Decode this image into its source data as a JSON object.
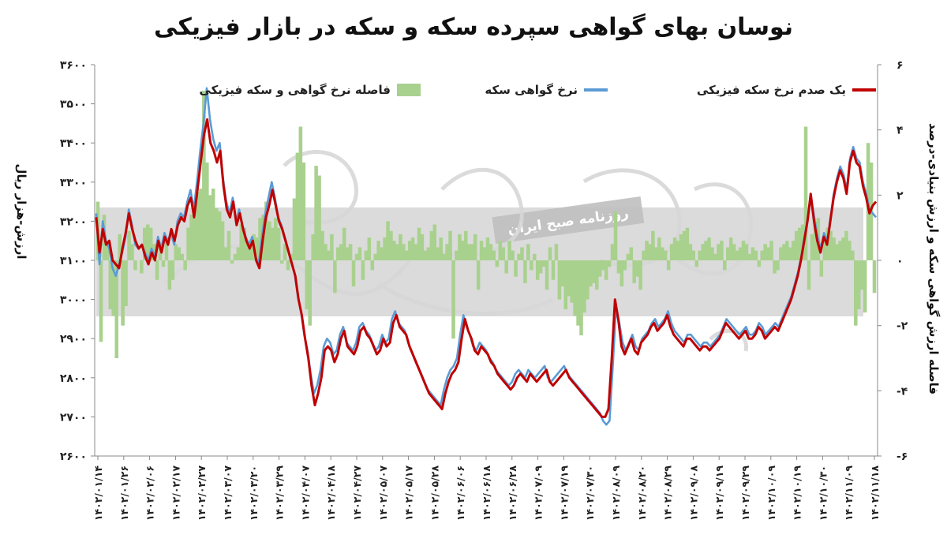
{
  "chart_data": {
    "type": "line",
    "title": "نوسان بهای گواهی سپرده سکه و سکه در بازار فیزیکی",
    "watermark": "روزنامه صبح ایران",
    "y_left": {
      "label": "ارزش-هزار ریال",
      "ylim": [
        2600,
        3600
      ],
      "ticks": [
        2600,
        2700,
        2800,
        2900,
        3000,
        3100,
        3200,
        3300,
        3400,
        3500,
        3600
      ],
      "tick_labels": [
        "۲۶۰۰",
        "۲۷۰۰",
        "۲۸۰۰",
        "۲۹۰۰",
        "۳۰۰۰",
        "۳۱۰۰",
        "۳۲۰۰",
        "۳۳۰۰",
        "۳۴۰۰",
        "۳۵۰۰",
        "۳۶۰۰"
      ]
    },
    "y_right": {
      "label": "فاصله ارزش گواهی سکه و ارزش بنیادی-درصد",
      "ylim": [
        -6,
        6
      ],
      "ticks": [
        -6,
        -4,
        -2,
        0,
        2,
        4,
        6
      ],
      "tick_labels": [
        "-۶",
        "-۴",
        "-۲",
        "۰",
        "۲",
        "۴",
        "۶"
      ]
    },
    "x_tick_labels": [
      "۱۴۰۲/۰۱/۱۴",
      "۱۴۰۲/۰۱/۲۶",
      "۱۴۰۲/۰۲/۰۶",
      "۱۴۰۲/۰۲/۱۷",
      "۱۴۰۲/۰۲/۲۷",
      "۱۴۰۲/۰۳/۰۷",
      "۱۴۰۲/۰۳/۲۰",
      "۱۴۰۲/۰۳/۲۹",
      "۱۴۰۲/۰۴/۰۷",
      "۱۴۰۲/۰۴/۱۸",
      "۱۴۰۲/۰۴/۲۷",
      "۱۴۰۲/۰۵/۰۷",
      "۱۴۰۲/۰۵/۱۷",
      "۱۴۰۲/۰۵/۲۸",
      "۱۴۰۲/۰۶/۰۶",
      "۱۴۰۲/۰۶/۱۸",
      "۱۴۰۲/۰۶/۲۸",
      "۱۴۰۲/۰۷/۰۹",
      "۱۴۰۲/۰۷/۱۹",
      "۱۴۰۲/۰۷/۳۰",
      "۱۴۰۲/۰۸/۰۹",
      "۱۴۰۲/۰۸/۲۰",
      "۱۴۰۲/۰۸/۲۹",
      "۱۴۰۲/۰۹/۰۸",
      "۱۴۰۲/۰۹/۱۹",
      "۱۴۰۲/۰۹/۲۹",
      "۱۴۰۲/۱۰/۰۹",
      "۱۴۰۲/۱۰/۱۹",
      "۱۴۰۲/۱۰/۳۰",
      "۱۴۰۲/۱۱/۰۹",
      "۱۴۰۲/۱۱/۱۸"
    ],
    "legend_position": "top",
    "series": [
      {
        "name": "یک صدم نرخ سکه فیزیکی",
        "axis": "left",
        "color": "#c00000",
        "type": "line",
        "values": [
          3210,
          3120,
          3180,
          3140,
          3150,
          3100,
          3090,
          3080,
          3130,
          3170,
          3220,
          3180,
          3150,
          3130,
          3140,
          3110,
          3090,
          3120,
          3100,
          3150,
          3120,
          3160,
          3140,
          3180,
          3150,
          3190,
          3210,
          3200,
          3240,
          3260,
          3210,
          3280,
          3350,
          3420,
          3460,
          3400,
          3380,
          3350,
          3380,
          3290,
          3230,
          3210,
          3250,
          3190,
          3220,
          3180,
          3150,
          3130,
          3150,
          3100,
          3080,
          3150,
          3210,
          3240,
          3280,
          3240,
          3200,
          3180,
          3150,
          3120,
          3090,
          3060,
          3000,
          2960,
          2900,
          2850,
          2780,
          2730,
          2760,
          2800,
          2870,
          2880,
          2870,
          2840,
          2860,
          2900,
          2920,
          2880,
          2870,
          2860,
          2880,
          2920,
          2930,
          2910,
          2900,
          2880,
          2860,
          2870,
          2900,
          2880,
          2890,
          2940,
          2960,
          2930,
          2920,
          2910,
          2880,
          2860,
          2840,
          2820,
          2800,
          2780,
          2760,
          2750,
          2740,
          2730,
          2720,
          2760,
          2790,
          2810,
          2820,
          2840,
          2900,
          2950,
          2920,
          2900,
          2870,
          2860,
          2880,
          2870,
          2860,
          2840,
          2830,
          2810,
          2800,
          2790,
          2780,
          2770,
          2780,
          2800,
          2810,
          2800,
          2790,
          2810,
          2800,
          2790,
          2800,
          2810,
          2820,
          2790,
          2780,
          2790,
          2800,
          2810,
          2820,
          2800,
          2790,
          2780,
          2770,
          2760,
          2750,
          2740,
          2730,
          2720,
          2710,
          2700,
          2700,
          2720,
          2850,
          3000,
          2950,
          2880,
          2860,
          2880,
          2900,
          2870,
          2860,
          2890,
          2900,
          2910,
          2930,
          2940,
          2920,
          2930,
          2940,
          2960,
          2930,
          2910,
          2900,
          2890,
          2880,
          2900,
          2900,
          2890,
          2880,
          2870,
          2880,
          2880,
          2870,
          2880,
          2890,
          2900,
          2920,
          2940,
          2930,
          2920,
          2910,
          2900,
          2910,
          2920,
          2900,
          2900,
          2910,
          2930,
          2920,
          2900,
          2910,
          2920,
          2930,
          2920,
          2940,
          2960,
          2980,
          3000,
          3030,
          3060,
          3100,
          3150,
          3200,
          3270,
          3200,
          3150,
          3120,
          3160,
          3140,
          3200,
          3260,
          3300,
          3330,
          3310,
          3270,
          3350,
          3380,
          3350,
          3340,
          3290,
          3260,
          3220,
          3240,
          3250
        ],
        "note": ""
      },
      {
        "name": "نرخ گواهی سکه",
        "axis": "left",
        "color": "#5b9bd5",
        "type": "line",
        "values": [
          3220,
          3090,
          3200,
          3150,
          3130,
          3080,
          3060,
          3090,
          3120,
          3160,
          3230,
          3190,
          3140,
          3130,
          3140,
          3120,
          3100,
          3130,
          3110,
          3160,
          3130,
          3170,
          3150,
          3170,
          3140,
          3200,
          3220,
          3210,
          3250,
          3280,
          3230,
          3300,
          3380,
          3450,
          3540,
          3460,
          3410,
          3380,
          3400,
          3310,
          3250,
          3220,
          3260,
          3200,
          3230,
          3190,
          3160,
          3140,
          3160,
          3110,
          3090,
          3160,
          3220,
          3260,
          3300,
          3260,
          3210,
          3190,
          3160,
          3130,
          3100,
          3070,
          3010,
          2970,
          2910,
          2870,
          2810,
          2760,
          2780,
          2820,
          2880,
          2900,
          2890,
          2860,
          2870,
          2910,
          2930,
          2890,
          2880,
          2870,
          2890,
          2930,
          2940,
          2920,
          2910,
          2890,
          2870,
          2880,
          2910,
          2890,
          2900,
          2950,
          2970,
          2940,
          2930,
          2920,
          2890,
          2870,
          2850,
          2830,
          2810,
          2790,
          2770,
          2760,
          2750,
          2740,
          2730,
          2770,
          2800,
          2820,
          2830,
          2850,
          2910,
          2960,
          2930,
          2910,
          2880,
          2870,
          2890,
          2880,
          2870,
          2850,
          2840,
          2820,
          2810,
          2800,
          2790,
          2780,
          2790,
          2810,
          2820,
          2810,
          2800,
          2820,
          2810,
          2800,
          2810,
          2820,
          2830,
          2800,
          2790,
          2800,
          2810,
          2820,
          2830,
          2810,
          2800,
          2790,
          2780,
          2770,
          2760,
          2750,
          2740,
          2730,
          2720,
          2710,
          2690,
          2680,
          2690,
          2830,
          2980,
          2940,
          2890,
          2870,
          2890,
          2910,
          2880,
          2870,
          2900,
          2910,
          2920,
          2940,
          2950,
          2930,
          2940,
          2950,
          2970,
          2940,
          2920,
          2910,
          2900,
          2890,
          2910,
          2910,
          2900,
          2890,
          2880,
          2890,
          2890,
          2880,
          2890,
          2900,
          2910,
          2930,
          2950,
          2940,
          2930,
          2920,
          2910,
          2920,
          2930,
          2910,
          2910,
          2920,
          2940,
          2930,
          2910,
          2920,
          2930,
          2940,
          2930,
          2950,
          2970,
          2990,
          3010,
          3040,
          3070,
          3110,
          3160,
          3210,
          3260,
          3210,
          3160,
          3130,
          3170,
          3150,
          3210,
          3270,
          3310,
          3340,
          3320,
          3280,
          3360,
          3390,
          3360,
          3350,
          3300,
          3270,
          3230,
          3220,
          3210
        ]
      }
    ],
    "area_series": {
      "name": "فاصله نرخ گواهی و سکه فیزیکی",
      "axis": "right",
      "color": "#a9d18e",
      "values": [
        1.8,
        -2.5,
        1.4,
        0.6,
        -1.5,
        -1.7,
        -3.0,
        0.8,
        -2.0,
        -1.4,
        0.9,
        0.5,
        -0.3,
        0.0,
        -0.4,
        1.0,
        1.1,
        1.0,
        0.5,
        -0.6,
        0.4,
        -0.2,
        0.6,
        -0.9,
        -0.6,
        0.5,
        0.4,
        0.2,
        -0.3,
        1.0,
        1.4,
        1.3,
        2.1,
        2.2,
        5.2,
        3.0,
        2.0,
        2.2,
        1.6,
        1.5,
        1.2,
        0.4,
        0.9,
        -0.1,
        0.2,
        0.4,
        1.1,
        1.0,
        0.5,
        0.6,
        0.8,
        0.7,
        1.3,
        1.4,
        1.8,
        1.2,
        1.0,
        1.3,
        1.0,
        -0.1,
        0.5,
        -0.3,
        0.2,
        1.9,
        3.3,
        4.1,
        3.0,
        -1.5,
        -2.0,
        0.8,
        2.9,
        2.6,
        0.9,
        0.5,
        0.3,
        0.8,
        -1.0,
        0.4,
        0.5,
        1.0,
        0.4,
        0.5,
        -0.8,
        0.2,
        0.4,
        -0.6,
        0.3,
        0.7,
        -0.3,
        0.2,
        0.6,
        0.4,
        0.7,
        1.2,
        0.9,
        0.6,
        0.5,
        0.8,
        0.5,
        0.3,
        0.6,
        0.7,
        0.5,
        1.0,
        0.8,
        0.3,
        0.4,
        0.9,
        1.1,
        0.4,
        0.7,
        0.2,
        0.5,
        0.9,
        -2.4,
        0.3,
        0.8,
        0.6,
        0.9,
        0.5,
        0.5,
        0.8,
        -0.9,
        0.6,
        0.4,
        0.7,
        0.5,
        0.3,
        -0.2,
        0.6,
        0.4,
        -0.4,
        0.6,
        0.3,
        -0.5,
        0.2,
        0.4,
        -0.7,
        0.5,
        -0.3,
        0.2,
        -0.6,
        -0.4,
        -0.2,
        -0.9,
        0.4,
        -0.6,
        0.5,
        -1.2,
        -0.8,
        -1.5,
        -1.1,
        -1.3,
        -1.7,
        -2.0,
        -2.3,
        -1.6,
        -1.2,
        -0.8,
        -0.7,
        -0.9,
        -0.5,
        -0.3,
        -0.6,
        -0.2,
        0.5,
        1.5,
        -0.4,
        -0.8,
        -0.3,
        0.2,
        0.4,
        -0.7,
        -0.5,
        -0.9,
        0.3,
        0.6,
        0.5,
        0.9,
        0.4,
        0.7,
        0.4,
        0.3,
        -0.3,
        0.5,
        0.7,
        0.6,
        0.8,
        0.9,
        1.0,
        0.5,
        0.3,
        -0.2,
        0.3,
        0.5,
        0.6,
        0.7,
        0.4,
        0.2,
        0.5,
        0.6,
        -0.3,
        0.4,
        0.7,
        0.5,
        0.3,
        0.4,
        0.6,
        0.5,
        0.2,
        0.4,
        0.3,
        -0.2,
        0.3,
        0.5,
        0.4,
        0.6,
        -0.4,
        -0.3,
        0.4,
        0.5,
        0.6,
        0.4,
        0.6,
        0.9,
        1.0,
        1.1,
        4.1,
        -0.9,
        0.8,
        1.2,
        1.3,
        -0.5,
        0.8,
        1.0,
        0.9,
        0.7,
        0.5,
        0.6,
        0.7,
        0.9,
        0.6,
        0.3,
        -2.0,
        -1.5,
        -0.9,
        -1.6,
        3.6,
        3.0,
        -1.0
      ]
    }
  }
}
